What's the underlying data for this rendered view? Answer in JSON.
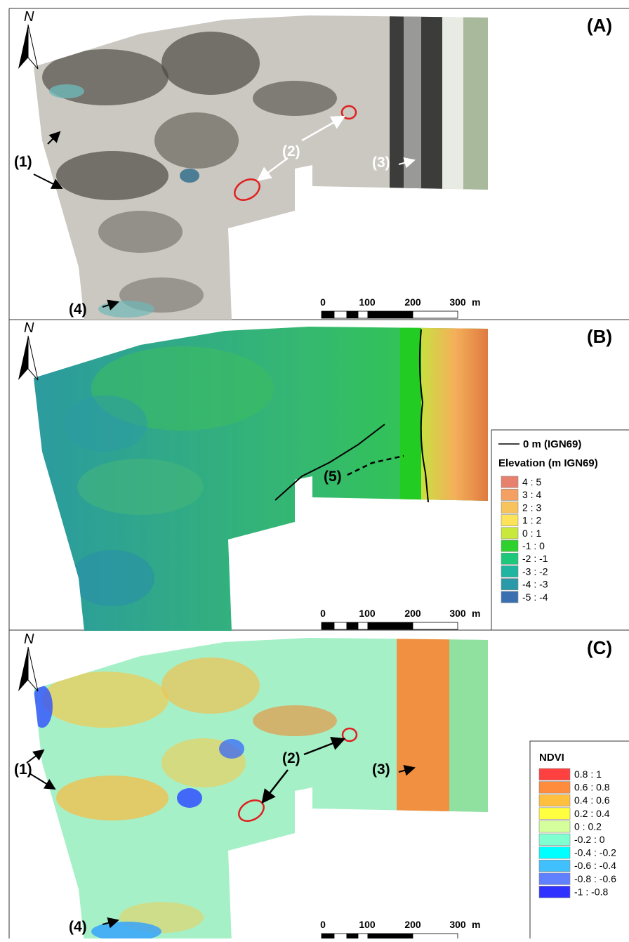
{
  "panels": [
    {
      "label": "(A)",
      "north": "N",
      "annotations": [
        "(1)",
        "(2)",
        "(3)",
        "(4)"
      ],
      "scale_bar": {
        "ticks": [
          "0",
          "100",
          "200",
          "300"
        ],
        "unit": "m"
      }
    },
    {
      "label": "(B)",
      "north": "N",
      "annotations": [
        "(5)"
      ],
      "scale_bar": {
        "ticks": [
          "0",
          "100",
          "200",
          "300"
        ],
        "unit": "m"
      },
      "legend": {
        "line_label": "0 m (IGN69)",
        "title": "Elevation (m IGN69)",
        "classes": [
          {
            "label": "4 : 5",
            "color": "#e8806e"
          },
          {
            "label": "3 : 4",
            "color": "#f4a062"
          },
          {
            "label": "2 : 3",
            "color": "#f7c35c"
          },
          {
            "label": "1 : 2",
            "color": "#fde35a"
          },
          {
            "label": "0 : 1",
            "color": "#c8e83c"
          },
          {
            "label": "-1 : 0",
            "color": "#2ed12e"
          },
          {
            "label": "-2 : -1",
            "color": "#1ec87a"
          },
          {
            "label": "-3 : -2",
            "color": "#1fb5a0"
          },
          {
            "label": "-4 : -3",
            "color": "#2a9aa8"
          },
          {
            "label": "-5 : -4",
            "color": "#3a70b0"
          }
        ]
      }
    },
    {
      "label": "(C)",
      "north": "N",
      "annotations": [
        "(1)",
        "(2)",
        "(3)",
        "(4)"
      ],
      "scale_bar": {
        "ticks": [
          "0",
          "100",
          "200",
          "300"
        ],
        "unit": "m"
      },
      "legend": {
        "title": "NDVI",
        "classes": [
          {
            "label": "0.8 : 1",
            "color": "#ff4040"
          },
          {
            "label": "0.6 : 0.8",
            "color": "#ff8c3c"
          },
          {
            "label": "0.4 : 0.6",
            "color": "#ffc040"
          },
          {
            "label": "0.2 : 0.4",
            "color": "#ffff40"
          },
          {
            "label": "0 : 0.2",
            "color": "#d4ff9a"
          },
          {
            "label": "-0.2 : 0",
            "color": "#80ffd0"
          },
          {
            "label": "-0.4 : -0.2",
            "color": "#00ffff"
          },
          {
            "label": "-0.6 : -0.4",
            "color": "#40c0ff"
          },
          {
            "label": "-0.8 : -0.6",
            "color": "#6080ff"
          },
          {
            "label": "-1 : -0.8",
            "color": "#3030ff"
          }
        ]
      }
    }
  ]
}
